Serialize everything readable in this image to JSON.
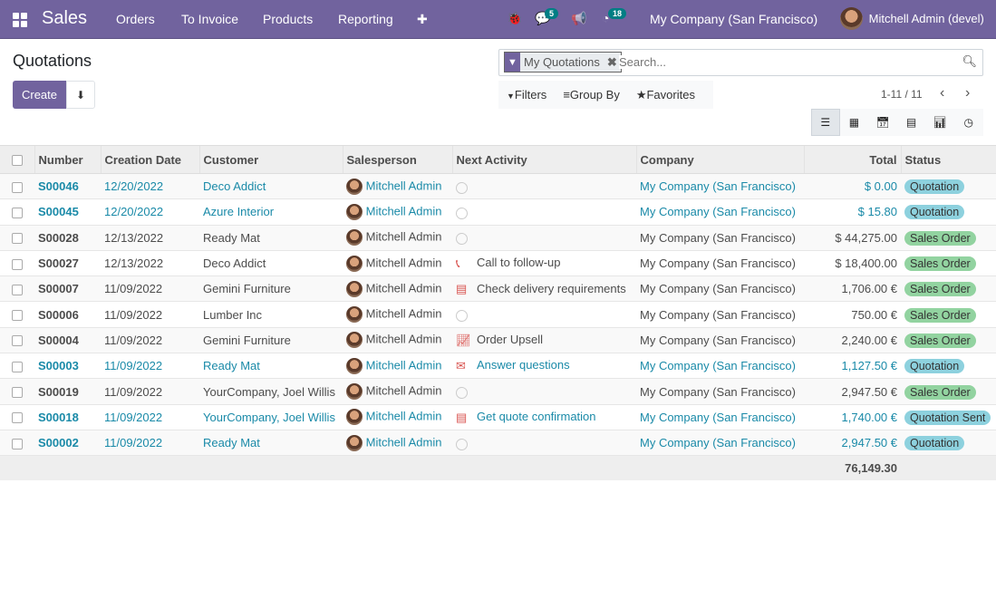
{
  "nav": {
    "app": "Sales",
    "menu": [
      "Orders",
      "To Invoice",
      "Products",
      "Reporting"
    ],
    "plus": "✚",
    "messages_count": "5",
    "activities_count": "18",
    "company": "My Company (San Francisco)",
    "user": "Mitchell Admin (devel)"
  },
  "page": {
    "title": "Quotations",
    "create": "Create"
  },
  "search": {
    "facet": "My Quotations",
    "placeholder": "Search...",
    "filters": "Filters",
    "group_by": "Group By",
    "favorites": "Favorites",
    "pager": "1-11 / 11"
  },
  "colors": {
    "brand": "#71639e",
    "link": "#1a8aa8",
    "quotation": "#8dd1de",
    "sales_order": "#92d3a0"
  },
  "table": {
    "headers": [
      "Number",
      "Creation Date",
      "Customer",
      "Salesperson",
      "Next Activity",
      "Company",
      "Total",
      "Status"
    ],
    "rows": [
      {
        "number": "S00046",
        "date": "12/20/2022",
        "customer": "Deco Addict",
        "salesperson": "Mitchell Admin",
        "activity": "",
        "activity_icon": "clock-icon",
        "company": "My Company (San Francisco)",
        "total": "$ 0.00",
        "status": "Quotation"
      },
      {
        "number": "S00045",
        "date": "12/20/2022",
        "customer": "Azure Interior",
        "salesperson": "Mitchell Admin",
        "activity": "",
        "activity_icon": "clock-icon",
        "company": "My Company (San Francisco)",
        "total": "$ 15.80",
        "status": "Quotation"
      },
      {
        "number": "S00028",
        "date": "12/13/2022",
        "customer": "Ready Mat",
        "salesperson": "Mitchell Admin",
        "activity": "",
        "activity_icon": "clock-icon",
        "company": "My Company (San Francisco)",
        "total": "$ 44,275.00",
        "status": "Sales Order"
      },
      {
        "number": "S00027",
        "date": "12/13/2022",
        "customer": "Deco Addict",
        "salesperson": "Mitchell Admin",
        "activity": "Call to follow-up",
        "activity_icon": "phone-icon",
        "company": "My Company (San Francisco)",
        "total": "$ 18,400.00",
        "status": "Sales Order"
      },
      {
        "number": "S00007",
        "date": "11/09/2022",
        "customer": "Gemini Furniture",
        "salesperson": "Mitchell Admin",
        "activity": "Check delivery requirements",
        "activity_icon": "tasks-icon",
        "company": "My Company (San Francisco)",
        "total": "1,706.00 €",
        "status": "Sales Order"
      },
      {
        "number": "S00006",
        "date": "11/09/2022",
        "customer": "Lumber Inc",
        "salesperson": "Mitchell Admin",
        "activity": "",
        "activity_icon": "clock-icon",
        "company": "My Company (San Francisco)",
        "total": "750.00 €",
        "status": "Sales Order"
      },
      {
        "number": "S00004",
        "date": "11/09/2022",
        "customer": "Gemini Furniture",
        "salesperson": "Mitchell Admin",
        "activity": "Order Upsell",
        "activity_icon": "chart-line-icon",
        "company": "My Company (San Francisco)",
        "total": "2,240.00 €",
        "status": "Sales Order"
      },
      {
        "number": "S00003",
        "date": "11/09/2022",
        "customer": "Ready Mat",
        "salesperson": "Mitchell Admin",
        "activity": "Answer questions",
        "activity_icon": "envelope-icon",
        "company": "My Company (San Francisco)",
        "total": "1,127.50 €",
        "status": "Quotation"
      },
      {
        "number": "S00019",
        "date": "11/09/2022",
        "customer": "YourCompany, Joel Willis",
        "salesperson": "Mitchell Admin",
        "activity": "",
        "activity_icon": "clock-icon",
        "company": "My Company (San Francisco)",
        "total": "2,947.50 €",
        "status": "Sales Order"
      },
      {
        "number": "S00018",
        "date": "11/09/2022",
        "customer": "YourCompany, Joel Willis",
        "salesperson": "Mitchell Admin",
        "activity": "Get quote confirmation",
        "activity_icon": "tasks-icon",
        "company": "My Company (San Francisco)",
        "total": "1,740.00 €",
        "status": "Quotation Sent"
      },
      {
        "number": "S00002",
        "date": "11/09/2022",
        "customer": "Ready Mat",
        "salesperson": "Mitchell Admin",
        "activity": "",
        "activity_icon": "clock-icon",
        "company": "My Company (San Francisco)",
        "total": "2,947.50 €",
        "status": "Quotation"
      }
    ],
    "sum_total": "76,149.30"
  }
}
